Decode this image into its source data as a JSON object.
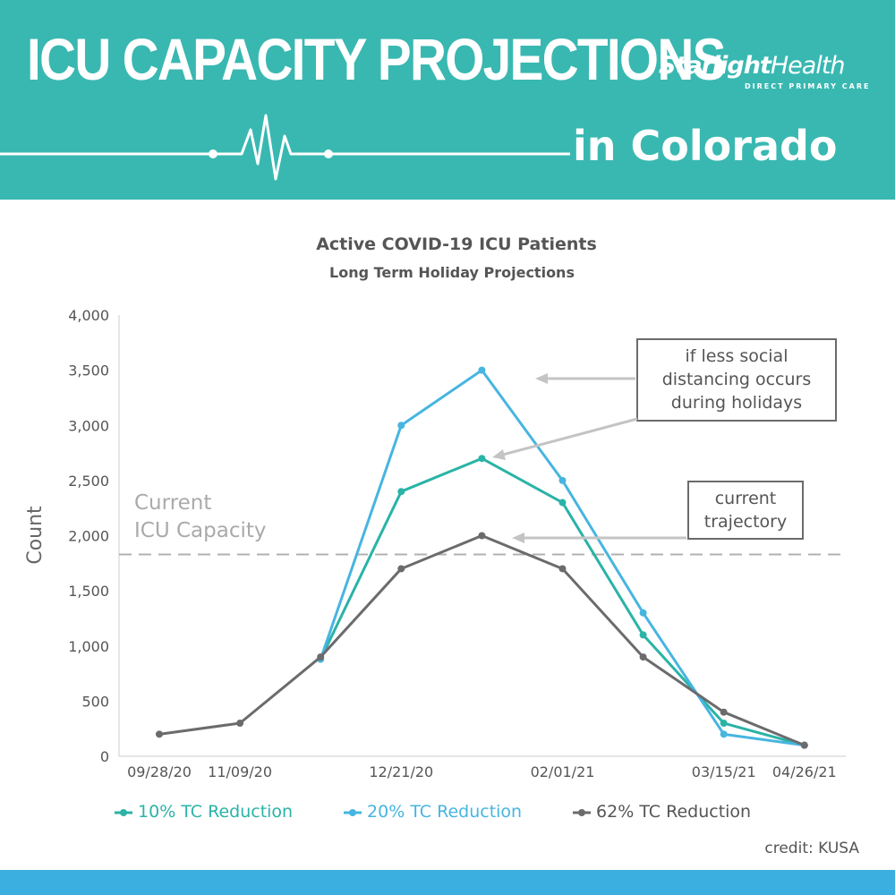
{
  "header": {
    "title": "ICU CAPACITY PROJECTIONS",
    "subtitle": "in Colorado",
    "logo_main_a": "Starlight",
    "logo_main_b": "Health",
    "logo_sub": "DIRECT PRIMARY CARE",
    "background_color": "#39b8b1"
  },
  "chart_data": {
    "type": "line",
    "title": "Active COVID-19 ICU Patients",
    "subtitle": "Long Term Holiday Projections",
    "ylabel": "Count",
    "xlabel": "",
    "ylim": [
      0,
      4000
    ],
    "yticks": [
      0,
      500,
      1000,
      1500,
      2000,
      2500,
      3000,
      3500,
      4000
    ],
    "ytick_labels": [
      "0",
      "500",
      "1,000",
      "1,500",
      "2,000",
      "2,500",
      "3,000",
      "3,500",
      "4,000"
    ],
    "xtick_labels": [
      "09/28/20",
      "11/09/20",
      "12/21/20",
      "02/01/21",
      "03/15/21",
      "04/26/21"
    ],
    "xtick_positions": [
      0,
      1,
      3,
      5,
      7,
      8
    ],
    "x": [
      0,
      1,
      2,
      3,
      4,
      5,
      6,
      7,
      8
    ],
    "series": [
      {
        "name": "10% TC Reduction",
        "color": "#2ab3a7",
        "values": [
          null,
          null,
          880,
          2400,
          2700,
          2300,
          1100,
          300,
          100
        ]
      },
      {
        "name": "20% TC Reduction",
        "color": "#47b5e0",
        "values": [
          null,
          null,
          880,
          3000,
          3500,
          2500,
          1300,
          200,
          100
        ]
      },
      {
        "name": "62% TC Reduction",
        "color": "#6b6b6d",
        "values": [
          200,
          300,
          900,
          1700,
          2000,
          1700,
          900,
          400,
          100
        ]
      }
    ],
    "capacity_line": {
      "value": 1830,
      "label_line1": "Current",
      "label_line2": "ICU Capacity"
    },
    "annotations": [
      {
        "lines": [
          "if less social",
          "distancing occurs",
          "during holidays"
        ]
      },
      {
        "lines": [
          "current",
          "trajectory"
        ]
      }
    ],
    "credit": "credit: KUSA"
  }
}
